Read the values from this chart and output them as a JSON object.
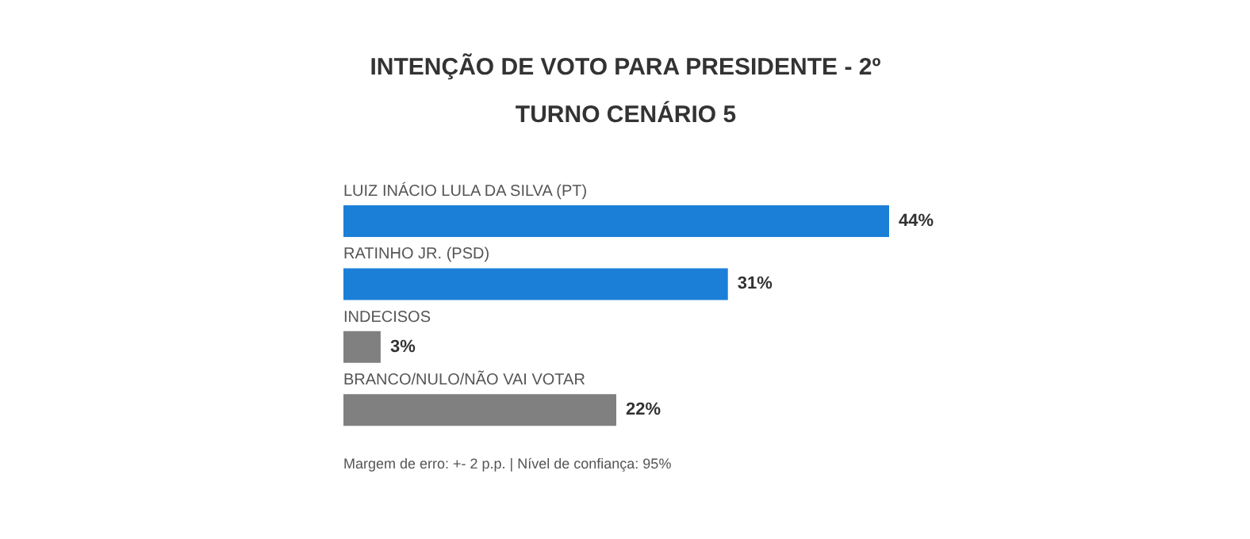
{
  "chart_data": {
    "type": "bar",
    "orientation": "horizontal",
    "title": "INTENÇÃO DE VOTO PARA PRESIDENTE - 2º TURNO CENÁRIO 5",
    "categories": [
      "LUIZ INÁCIO LULA DA SILVA (PT)",
      "RATINHO JR. (PSD)",
      "INDECISOS",
      "BRANCO/NULO/NÃO VAI VOTAR"
    ],
    "values": [
      44,
      31,
      3,
      22
    ],
    "colors": [
      "#1b7fd8",
      "#1b7fd8",
      "#808080",
      "#808080"
    ],
    "value_labels": [
      "44%",
      "31%",
      "3%",
      "22%"
    ],
    "annotations": [
      "Margem de erro: +- 2 p.p. | Nível de confiança: 95%"
    ]
  }
}
